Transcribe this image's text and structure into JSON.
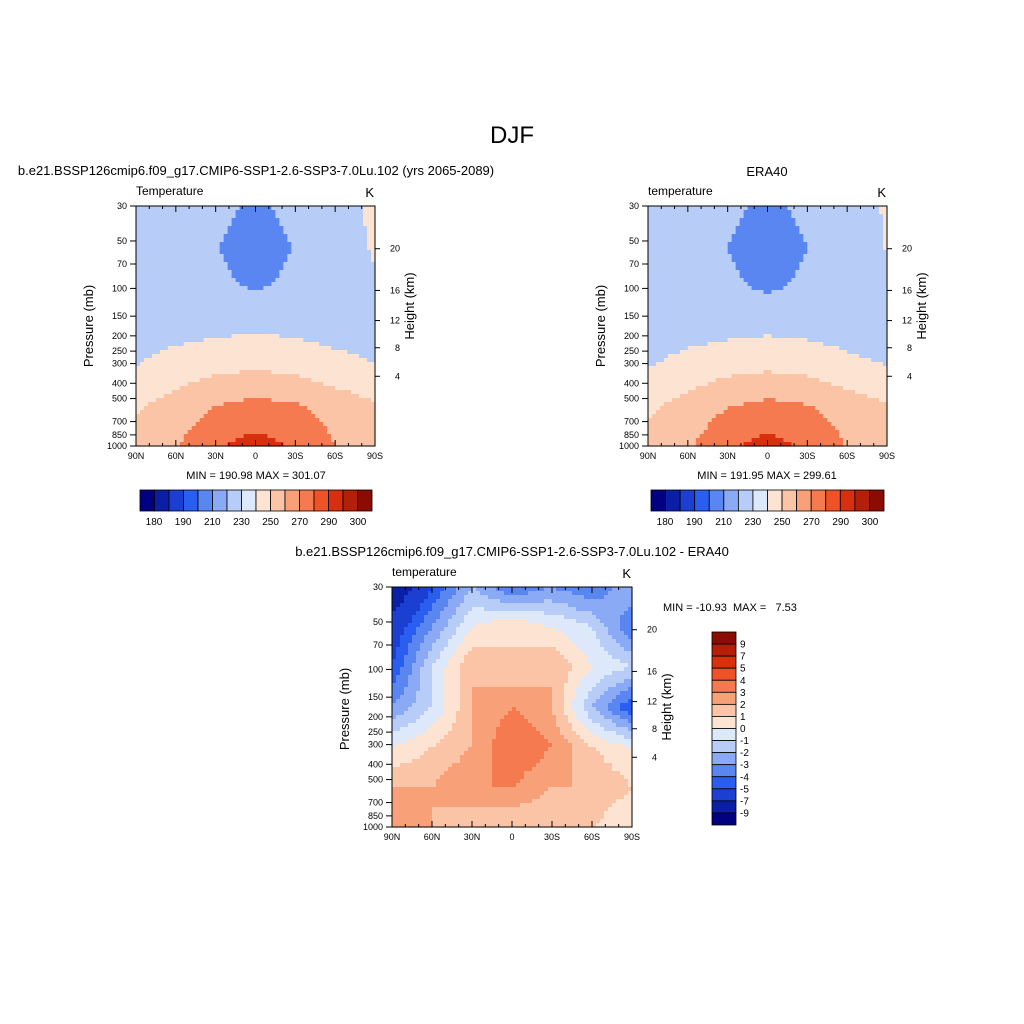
{
  "page": {
    "title": "DJF"
  },
  "palette": {
    "temperature": [
      "#000080",
      "#0a1fa6",
      "#1a3fd1",
      "#2a5ef0",
      "#5a86f2",
      "#8aaaf5",
      "#b7cdf7",
      "#dde8fb",
      "#fde3d2",
      "#fbc4a6",
      "#f8a078",
      "#f57a50",
      "#f05228",
      "#d8300f",
      "#b31f08",
      "#8a0c03"
    ],
    "difference": [
      "#000080",
      "#0a1fa6",
      "#1a3fd1",
      "#2a5ef0",
      "#5a86f2",
      "#8aaaf5",
      "#b7cdf7",
      "#dde8fb",
      "#fde3d2",
      "#fbc4a6",
      "#f8a078",
      "#f57a50",
      "#f05228",
      "#d8300f",
      "#b31f08",
      "#8a0c03"
    ]
  },
  "chart_data": [
    {
      "type": "heatmap",
      "title": "b.e21.BSSP126cmip6.f09_g17.CMIP6-SSP1-2.6-SSP3-7.0Lu.102 (yrs 2065-2089)",
      "left_label": "Temperature",
      "right_label": "K",
      "xlabel": "",
      "ylabel": "Pressure (mb)",
      "ylabel_right": "Height (km)",
      "x_ticks": [
        "90N",
        "60N",
        "30N",
        "0",
        "30S",
        "60S",
        "90S"
      ],
      "y_ticks": [
        "30",
        "50",
        "70",
        "100",
        "150",
        "200",
        "250",
        "300",
        "400",
        "500",
        "700",
        "850",
        "1000"
      ],
      "y_ticks_right": [
        "20",
        "16",
        "12",
        "8",
        "4"
      ],
      "y_scale": "log",
      "x": [
        "90N",
        "60N",
        "30N",
        "0",
        "30S",
        "60S",
        "90S"
      ],
      "y": [
        30,
        70,
        150,
        250,
        400,
        700,
        1000
      ],
      "z": [
        [
          213,
          222,
          216,
          206,
          216,
          226,
          232
        ],
        [
          215,
          224,
          211,
          200,
          211,
          222,
          232
        ],
        [
          212,
          222,
          214,
          208,
          214,
          222,
          228
        ],
        [
          220,
          222,
          224,
          226,
          224,
          222,
          219
        ],
        [
          230,
          238,
          244,
          247,
          244,
          236,
          231
        ],
        [
          248,
          258,
          270,
          276,
          272,
          262,
          252
        ],
        [
          256,
          268,
          288,
          298,
          288,
          270,
          256
        ]
      ],
      "stats": "MIN = 190.98  MAX = 301.07",
      "colorbar": {
        "orientation": "horizontal",
        "labels": [
          "180",
          "190",
          "210",
          "230",
          "250",
          "270",
          "290",
          "300"
        ]
      }
    },
    {
      "type": "heatmap",
      "title": "ERA40",
      "left_label": "temperature",
      "right_label": "K",
      "xlabel": "",
      "ylabel": "Pressure (mb)",
      "ylabel_right": "Height (km)",
      "x_ticks": [
        "90N",
        "60N",
        "30N",
        "0",
        "30S",
        "60S",
        "90S"
      ],
      "y_ticks": [
        "30",
        "50",
        "70",
        "100",
        "150",
        "200",
        "250",
        "300",
        "400",
        "500",
        "700",
        "850",
        "1000"
      ],
      "y_ticks_right": [
        "20",
        "16",
        "12",
        "8",
        "4"
      ],
      "y_scale": "log",
      "x": [
        "90N",
        "60N",
        "30N",
        "0",
        "30S",
        "60S",
        "90S"
      ],
      "y": [
        30,
        70,
        150,
        250,
        400,
        700,
        1000
      ],
      "z": [
        [
          211,
          221,
          215,
          205,
          215,
          225,
          231
        ],
        [
          213,
          223,
          210,
          199,
          210,
          221,
          231
        ],
        [
          211,
          221,
          213,
          207,
          213,
          221,
          227
        ],
        [
          219,
          221,
          223,
          225,
          223,
          221,
          218
        ],
        [
          229,
          237,
          243,
          246,
          243,
          235,
          230
        ],
        [
          247,
          257,
          269,
          275,
          271,
          261,
          251
        ],
        [
          255,
          267,
          287,
          297,
          287,
          269,
          255
        ]
      ],
      "stats": "MIN = 191.95  MAX = 299.61",
      "colorbar": {
        "orientation": "horizontal",
        "labels": [
          "180",
          "190",
          "210",
          "230",
          "250",
          "270",
          "290",
          "300"
        ]
      }
    },
    {
      "type": "heatmap",
      "title": "b.e21.BSSP126cmip6.f09_g17.CMIP6-SSP1-2.6-SSP3-7.0Lu.102 - ERA40",
      "left_label": "temperature",
      "right_label": "K",
      "xlabel": "",
      "ylabel": "Pressure (mb)",
      "ylabel_right": "Height (km)",
      "x_ticks": [
        "90N",
        "60N",
        "30N",
        "0",
        "30S",
        "60S",
        "90S"
      ],
      "y_ticks": [
        "30",
        "50",
        "70",
        "100",
        "150",
        "200",
        "250",
        "300",
        "400",
        "500",
        "700",
        "850",
        "1000"
      ],
      "y_ticks_right": [
        "20",
        "16",
        "12",
        "8",
        "4"
      ],
      "y_scale": "log",
      "x": [
        "90N",
        "60N",
        "30N",
        "0",
        "30S",
        "60S",
        "90S"
      ],
      "y": [
        30,
        70,
        150,
        250,
        400,
        700,
        1000
      ],
      "z": [
        [
          -9,
          -5,
          -2,
          -4,
          -3,
          -4,
          -2
        ],
        [
          -6,
          -3,
          0,
          1,
          0,
          -1,
          -4
        ],
        [
          -5,
          -1,
          2,
          1,
          2,
          0,
          -1
        ],
        [
          -3,
          -1,
          2,
          3,
          2,
          -2,
          -5
        ],
        [
          0,
          1,
          2,
          4,
          3,
          1,
          0
        ],
        [
          2,
          2,
          3,
          3,
          2,
          2,
          1
        ],
        [
          3,
          2,
          1,
          1,
          1,
          1,
          0
        ]
      ],
      "stats": "MIN = -10.93  MAX =   7.53",
      "colorbar": {
        "orientation": "vertical",
        "labels": [
          "9",
          "7",
          "5",
          "4",
          "3",
          "2",
          "1",
          "0",
          "-1",
          "-2",
          "-3",
          "-4",
          "-5",
          "-7",
          "-9"
        ]
      }
    }
  ]
}
